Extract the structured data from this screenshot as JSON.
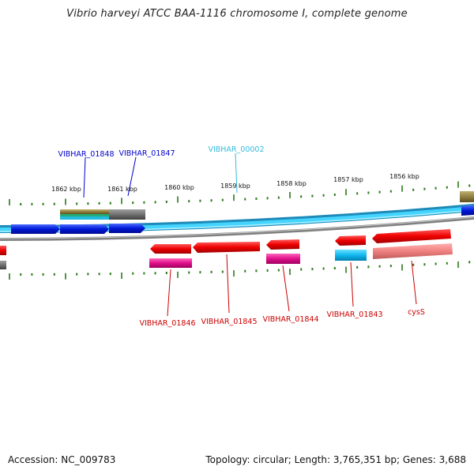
{
  "title": "Vibrio harveyi ATCC BAA-1116 chromosome I, complete genome",
  "footer": {
    "accession": "Accession: NC_009783",
    "info": "Topology: circular; Length: 3,765,351 bp; Genes: 3,688"
  },
  "colors": {
    "forward_label": "#0000cc",
    "reverse_label": "#cc0000",
    "rna_label": "#33bbdd",
    "tick": "#2a7a1a",
    "backbone": "#33ccff"
  },
  "kbp_ticks": [
    "1862 kbp",
    "1861 kbp",
    "1860 kbp",
    "1859 kbp",
    "1858 kbp",
    "1857 kbp",
    "1856 kbp"
  ],
  "forward_genes": [
    {
      "label": "VIBHAR_01848"
    },
    {
      "label": "VIBHAR_01847"
    }
  ],
  "rna_gene": {
    "label": "VIBHAR_00002"
  },
  "reverse_genes": [
    {
      "label": "VIBHAR_01846"
    },
    {
      "label": "VIBHAR_01845"
    },
    {
      "label": "VIBHAR_01844"
    },
    {
      "label": "VIBHAR_01843"
    },
    {
      "label": "cysS"
    }
  ]
}
